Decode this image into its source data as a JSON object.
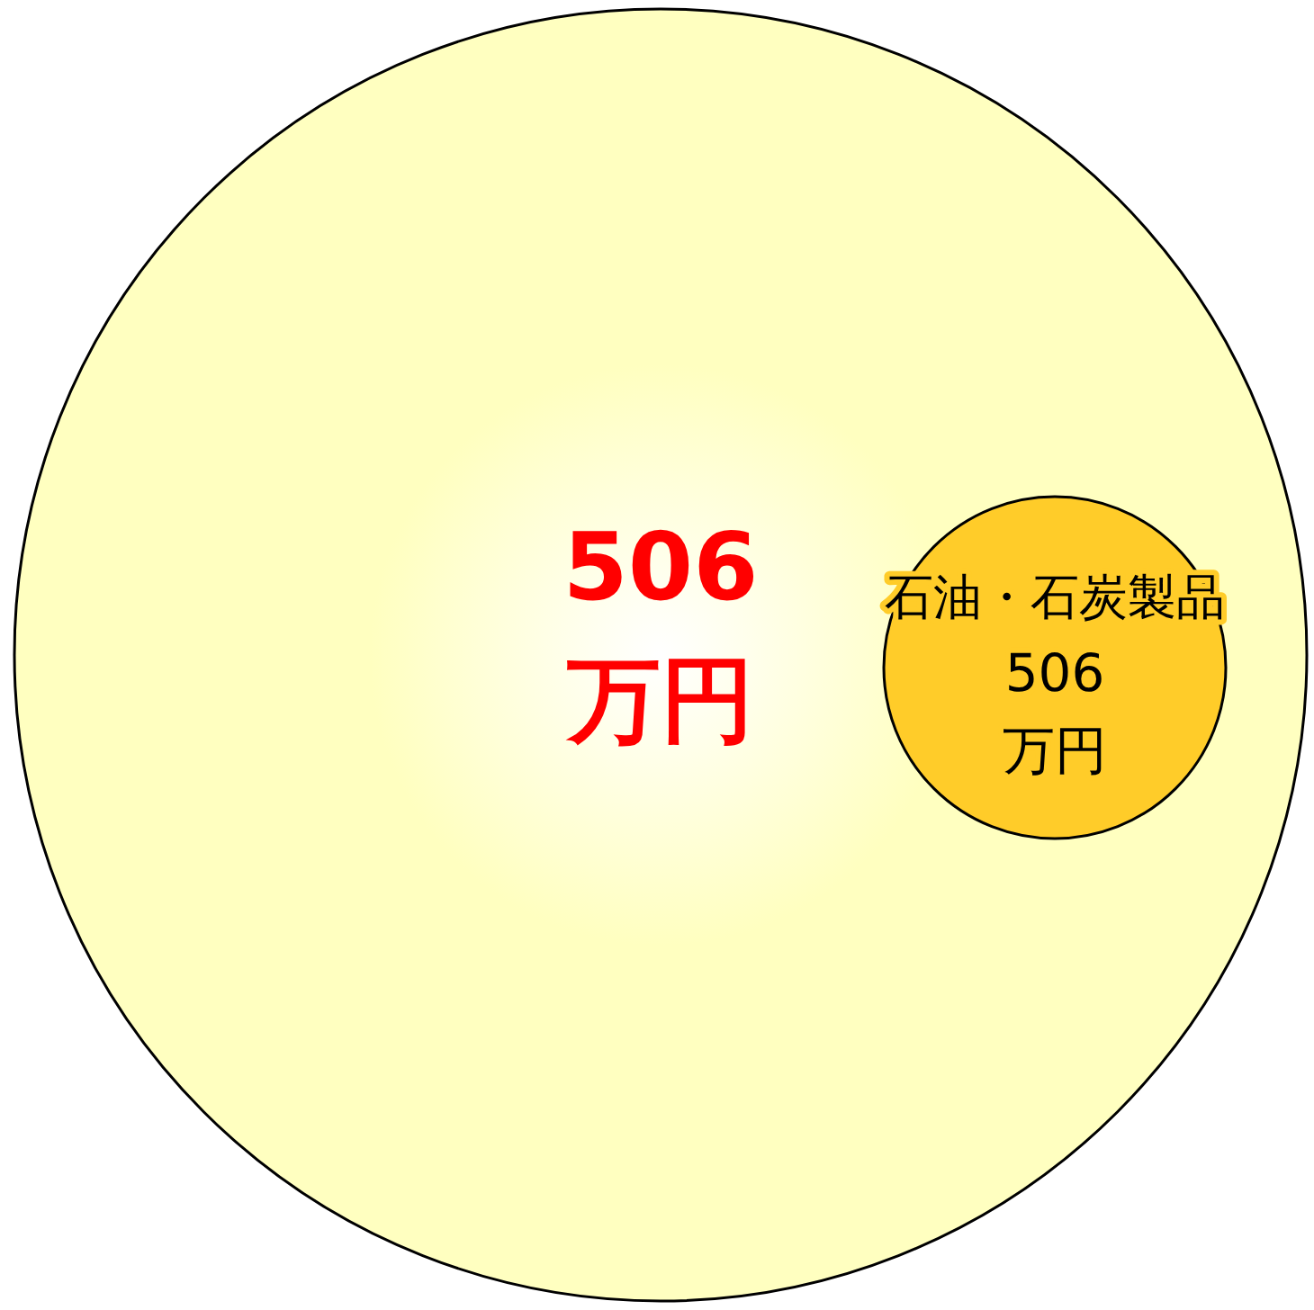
{
  "chart_data": {
    "type": "other",
    "color": "#ffffc0",
    "categories": [
      "石油・石炭製品"
    ],
    "values": [
      506
    ],
    "value_labels": [
      "506 万円"
    ],
    "colors": [
      "#ffcc29"
    ],
    "totals": [
      "506 万円"
    ]
  }
}
